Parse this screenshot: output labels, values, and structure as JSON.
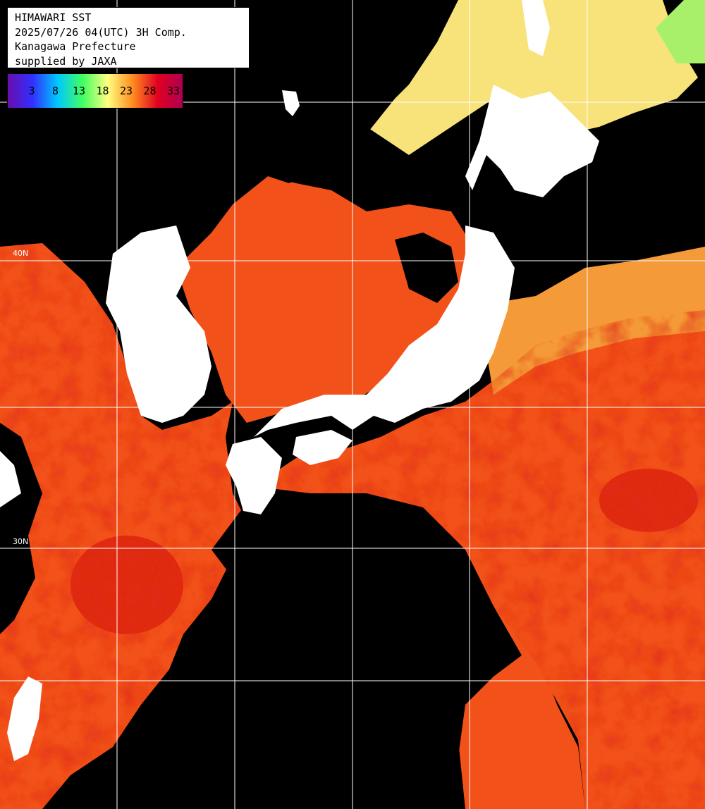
{
  "title": {
    "line1": "HIMAWARI SST",
    "line2": "2025/07/26 04(UTC) 3H Comp.",
    "line3": "Kanagawa Prefecture",
    "line4": "supplied by JAXA"
  },
  "legend": {
    "ticks": [
      "3",
      "8",
      "13",
      "18",
      "23",
      "28",
      "33"
    ],
    "colors": [
      "#6a0dad",
      "#3030ff",
      "#00c8ff",
      "#40ff60",
      "#ffff80",
      "#ff8c20",
      "#e00020",
      "#b00050"
    ]
  },
  "grid_labels": {
    "lat_40": "40N",
    "lat_30": "30N"
  },
  "map": {
    "land_color": "#ffffff",
    "no_data_color": "#000000",
    "grid_color": "#ffffff",
    "sst_warm_color": "#f2521a",
    "sst_hot_color": "#e02a12",
    "sst_mid_color": "#f49a38",
    "sst_cool_color": "#f8e27a",
    "sst_cold_color": "#a8f06a"
  }
}
